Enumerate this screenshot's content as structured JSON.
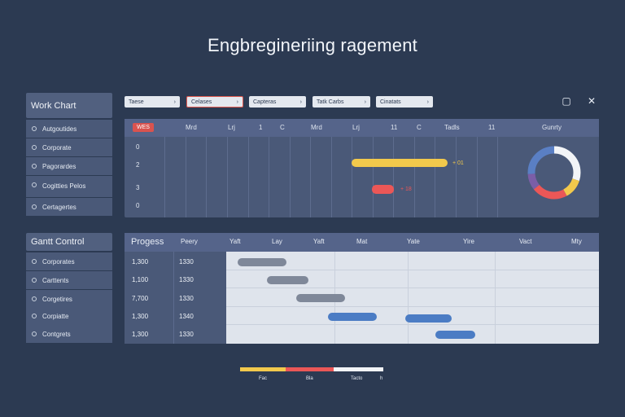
{
  "page_title": "Engbregineriing ragement",
  "top_sidebar": {
    "heading": "Work Chart",
    "items": [
      {
        "label": "Autgoutides"
      },
      {
        "label": "Corporate"
      },
      {
        "label": "Pagorardes"
      },
      {
        "label": "Cogitties Pelos"
      },
      {
        "label": "Certagertes"
      }
    ]
  },
  "toolbar": {
    "selects": [
      {
        "label": "Taese"
      },
      {
        "label": "Celases"
      },
      {
        "label": "Capteras"
      },
      {
        "label": "Tatk Carbs"
      },
      {
        "label": "Cinatats"
      }
    ],
    "window_buttons": [
      {
        "glyph": "▢"
      },
      {
        "glyph": "✕"
      }
    ]
  },
  "timeline": {
    "badge": "WES",
    "headers": [
      "Mrd",
      "Lrj",
      "1",
      "C",
      "Mrd",
      "Lrj",
      "11",
      "C",
      "Tadls",
      "11"
    ],
    "rows": [
      "0",
      "2",
      "3",
      "0"
    ],
    "bars": [
      {
        "color": "#f2c94c",
        "label": "+ 01",
        "label_color": "#f2c94c"
      },
      {
        "color": "#eb5757",
        "label": "+ 18",
        "label_color": "#eb5757"
      }
    ],
    "donut_label": "Gunrty",
    "donut_segments": [
      {
        "value": 30,
        "color": "#f2f4f7"
      },
      {
        "value": 12,
        "color": "#f2c94c"
      },
      {
        "value": 22,
        "color": "#eb5757"
      },
      {
        "value": 10,
        "color": "#7b5ea7"
      },
      {
        "value": 26,
        "color": "#5a7fc4"
      }
    ]
  },
  "gantt_sidebar": {
    "heading": "Gantt Control",
    "items": [
      {
        "label": "Corporates"
      },
      {
        "label": "Carttents"
      },
      {
        "label": "Corgetires"
      },
      {
        "label": "Corpiatte"
      },
      {
        "label": "Contgrets"
      }
    ]
  },
  "gantt": {
    "headers": [
      "Progess",
      "Peery",
      "Yaft",
      "Lay",
      "Yaft",
      "Mat",
      "Yate",
      "Yire",
      "Vact",
      "Mty"
    ],
    "rows": [
      {
        "progress": "1,300",
        "period": "1330",
        "bar_color": "#7f8899"
      },
      {
        "progress": "1,100",
        "period": "1330",
        "bar_color": "#7f8899"
      },
      {
        "progress": "7,700",
        "period": "1330",
        "bar_color": "#7f8899"
      },
      {
        "progress": "1,300",
        "period": "1340",
        "bar_color": "#4b7cc4"
      },
      {
        "progress": "1,300",
        "period": "1330",
        "bar_color": "#4b7cc4"
      }
    ]
  },
  "legend": [
    {
      "label": "Fac",
      "color": "#f2c94c"
    },
    {
      "label": "Bla",
      "color": "#eb5757"
    },
    {
      "label": "Tacto",
      "color": "#f2f4f7"
    },
    {
      "label": "h",
      "color": "#f2f4f7"
    }
  ]
}
